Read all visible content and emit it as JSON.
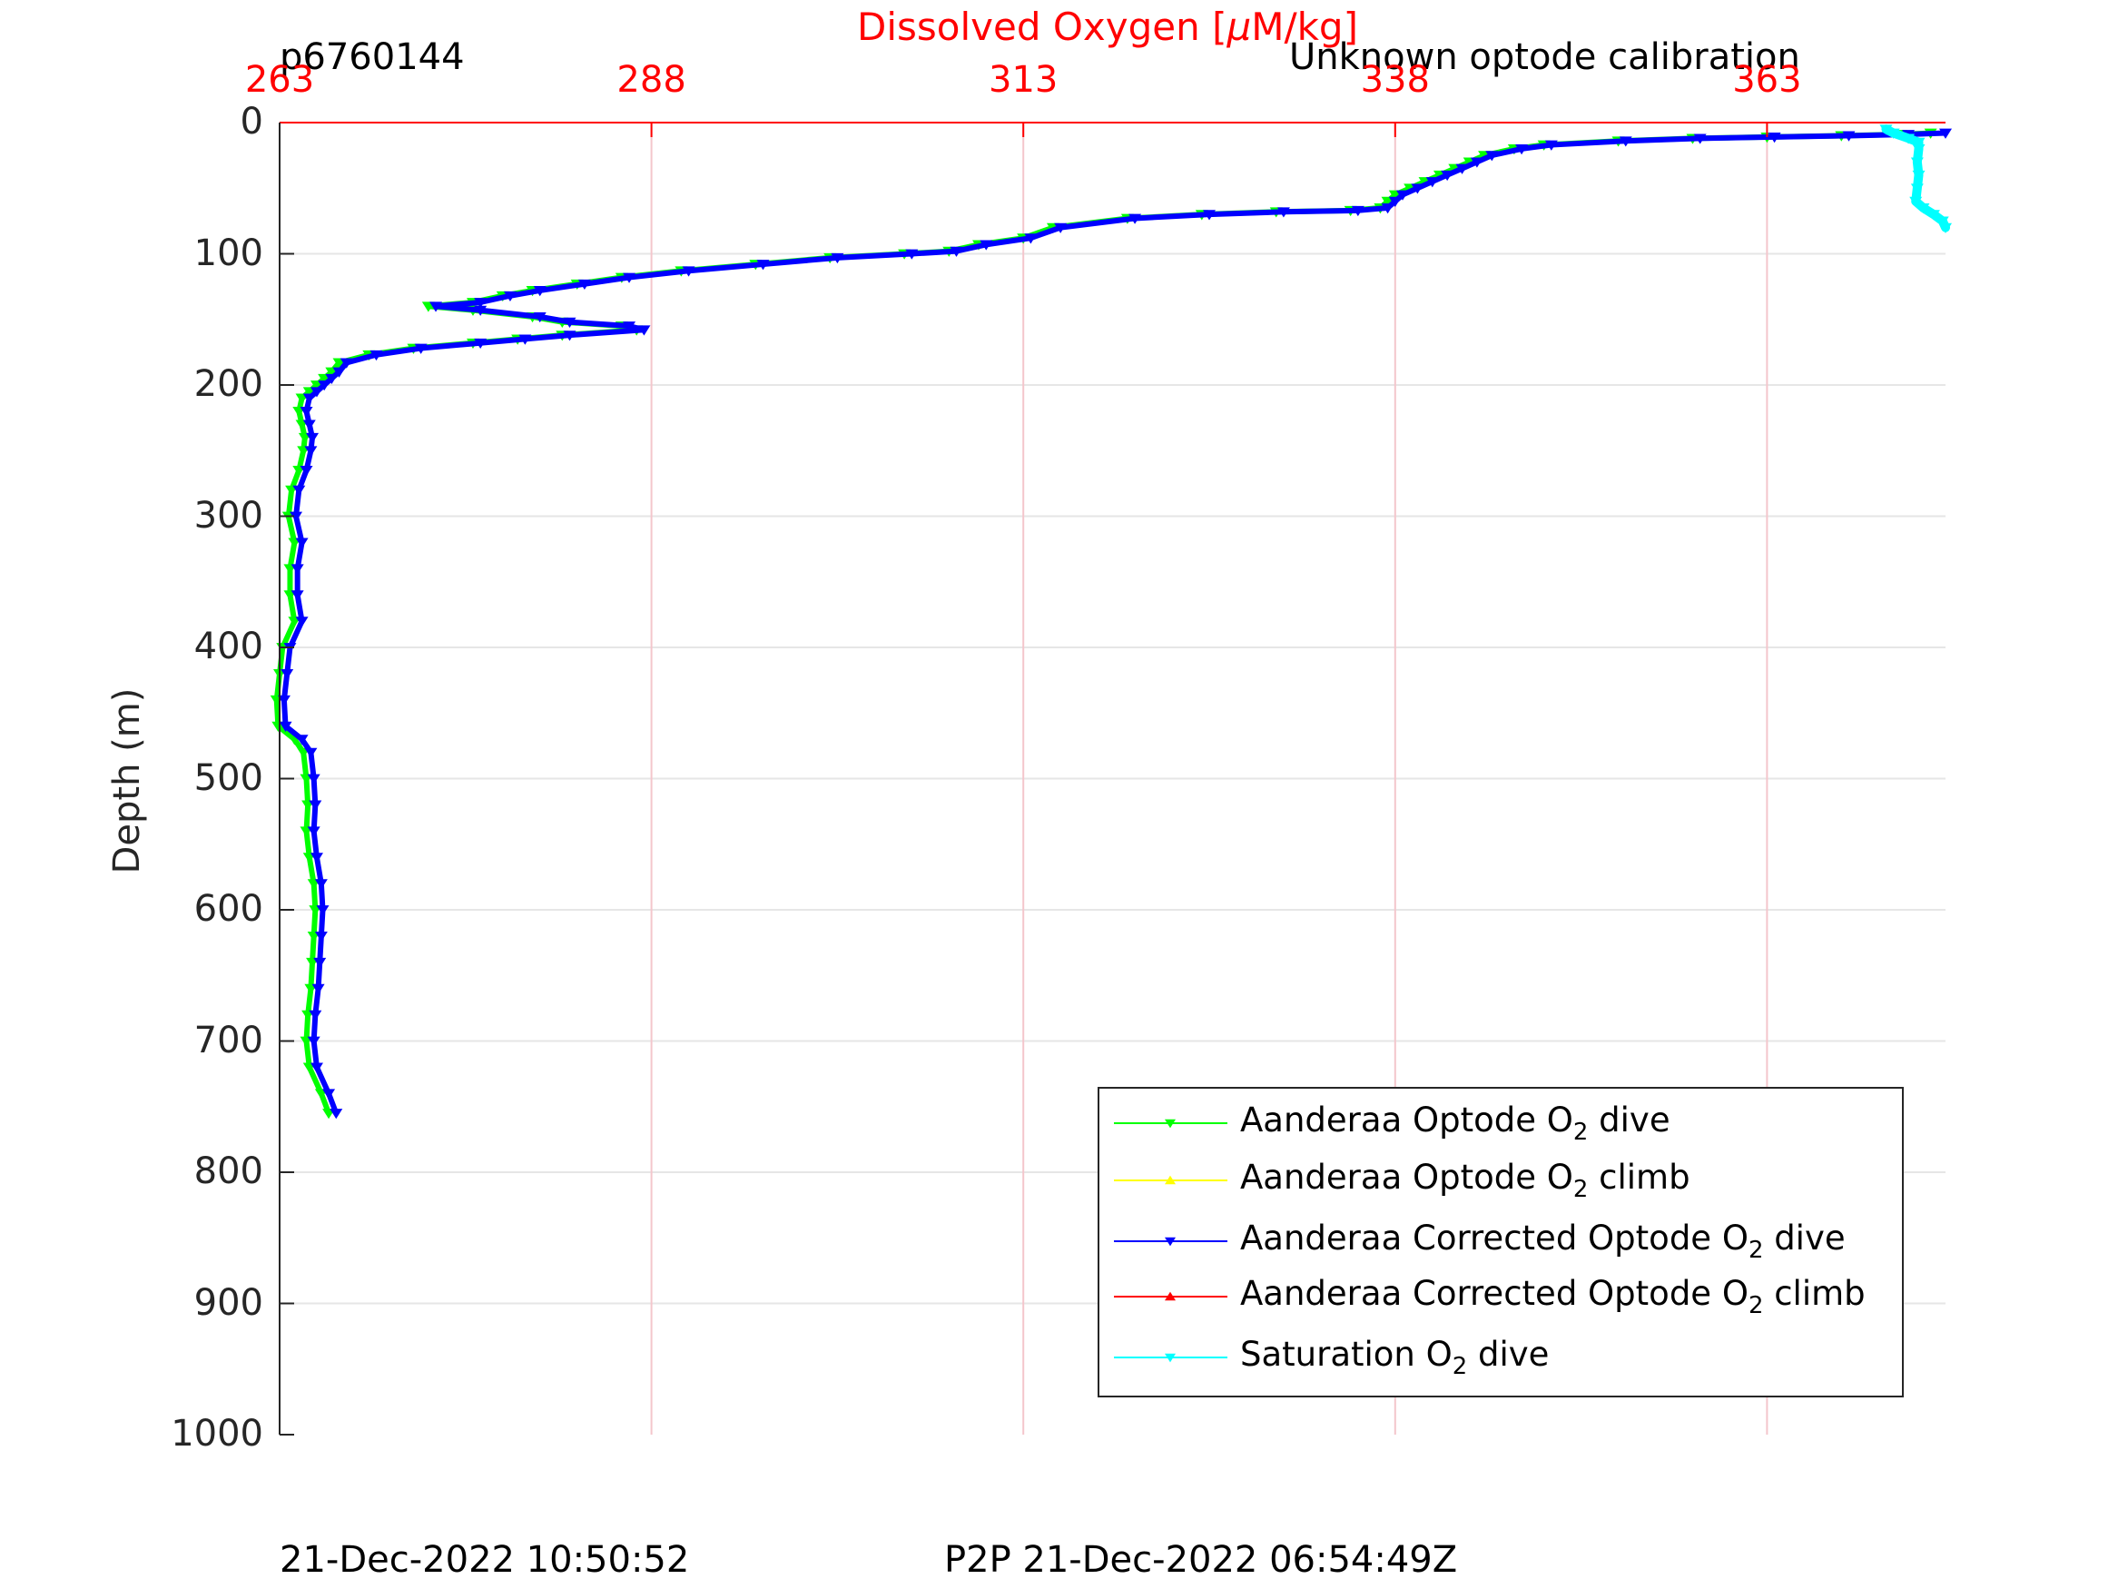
{
  "header": {
    "profile_id": "p6760144",
    "calibration_note": "Unknown optode calibration"
  },
  "footer": {
    "left_timestamp": "21-Dec-2022 10:50:52",
    "right_timestamp": "P2P 21-Dec-2022 06:54:49Z"
  },
  "colors": {
    "optode_dive": "#00ff00",
    "optode_climb": "#ffff00",
    "corrected_dive": "#0000ff",
    "corrected_climb": "#ff0000",
    "saturation_dive": "#00ffff",
    "top_axis": "#ff0000",
    "grid": "#e6e6e6",
    "vgrid": "#f4c6cc"
  },
  "chart_data": {
    "type": "line",
    "title": "Dissolved Oxygen [μM/kg]",
    "title_parts": {
      "before": "Dissolved Oxygen [",
      "mu": "μ",
      "after": "M/kg]"
    },
    "xlabel": "Dissolved Oxygen [μM/kg]",
    "ylabel": "Depth (m)",
    "xlim": [
      263,
      375
    ],
    "ylim": [
      0,
      1000
    ],
    "y_reversed": true,
    "x_axis_position": "top",
    "x_ticks": [
      "263",
      "288",
      "313",
      "338",
      "363"
    ],
    "y_ticks": [
      "0",
      "100",
      "200",
      "300",
      "400",
      "500",
      "600",
      "700",
      "800",
      "900",
      "1000"
    ],
    "grid": true,
    "legend_position": "bottom-right",
    "legend": [
      {
        "label": "Aanderaa Optode O",
        "sub": "2",
        "suffix": " dive",
        "marker": "down",
        "color": "#00ff00"
      },
      {
        "label": "Aanderaa Optode O",
        "sub": "2",
        "suffix": " climb",
        "marker": "up",
        "color": "#ffff00"
      },
      {
        "label": "Aanderaa Corrected Optode O",
        "sub": "2",
        "suffix": " dive",
        "marker": "down",
        "color": "#0000ff"
      },
      {
        "label": "Aanderaa Corrected Optode O",
        "sub": "2",
        "suffix": " climb",
        "marker": "up",
        "color": "#ff0000"
      },
      {
        "label": "Saturation O",
        "sub": "2",
        "suffix": " dive",
        "marker": "down",
        "color": "#00ffff"
      }
    ],
    "series": [
      {
        "name": "Aanderaa Optode O2 dive",
        "color": "#00ff00",
        "points": [
          [
            374,
            8
          ],
          [
            372,
            9
          ],
          [
            368,
            10
          ],
          [
            363,
            11
          ],
          [
            358,
            12
          ],
          [
            353,
            14
          ],
          [
            348,
            17
          ],
          [
            346,
            20
          ],
          [
            344,
            25
          ],
          [
            343,
            30
          ],
          [
            342,
            35
          ],
          [
            341,
            40
          ],
          [
            340,
            45
          ],
          [
            339,
            50
          ],
          [
            338,
            55
          ],
          [
            337.5,
            60
          ],
          [
            337,
            65
          ],
          [
            335,
            67
          ],
          [
            330,
            68
          ],
          [
            325,
            70
          ],
          [
            320,
            73
          ],
          [
            315,
            80
          ],
          [
            313,
            88
          ],
          [
            310,
            93
          ],
          [
            308,
            98
          ],
          [
            305,
            100
          ],
          [
            300,
            103
          ],
          [
            295,
            108
          ],
          [
            290,
            113
          ],
          [
            286,
            118
          ],
          [
            283,
            123
          ],
          [
            280,
            128
          ],
          [
            278,
            132
          ],
          [
            276,
            137
          ],
          [
            273,
            140
          ],
          [
            276,
            143
          ],
          [
            280,
            148
          ],
          [
            282,
            152
          ],
          [
            286,
            155
          ],
          [
            287,
            158
          ],
          [
            282,
            162
          ],
          [
            279,
            165
          ],
          [
            276,
            168
          ],
          [
            272,
            172
          ],
          [
            269,
            177
          ],
          [
            267,
            183
          ],
          [
            266.5,
            190
          ],
          [
            266,
            195
          ],
          [
            265.5,
            200
          ],
          [
            265,
            205
          ],
          [
            264.5,
            210
          ],
          [
            264.3,
            220
          ],
          [
            264.5,
            230
          ],
          [
            264.7,
            240
          ],
          [
            264.6,
            250
          ],
          [
            264.3,
            265
          ],
          [
            263.8,
            280
          ],
          [
            263.6,
            300
          ],
          [
            264,
            320
          ],
          [
            263.7,
            340
          ],
          [
            263.7,
            360
          ],
          [
            264,
            380
          ],
          [
            263.2,
            400
          ],
          [
            263,
            420
          ],
          [
            262.8,
            440
          ],
          [
            262.9,
            460
          ],
          [
            264,
            470
          ],
          [
            264.6,
            480
          ],
          [
            264.8,
            500
          ],
          [
            264.9,
            520
          ],
          [
            264.8,
            540
          ],
          [
            265,
            560
          ],
          [
            265.3,
            580
          ],
          [
            265.4,
            600
          ],
          [
            265.3,
            620
          ],
          [
            265.2,
            640
          ],
          [
            265.1,
            660
          ],
          [
            264.9,
            680
          ],
          [
            264.8,
            700
          ],
          [
            265,
            720
          ],
          [
            265.8,
            740
          ],
          [
            266.3,
            755
          ]
        ]
      },
      {
        "name": "Aanderaa Corrected Optode O2 dive",
        "color": "#0000ff",
        "points": [
          [
            375,
            8
          ],
          [
            372.5,
            9
          ],
          [
            368.5,
            10
          ],
          [
            363.5,
            11
          ],
          [
            358.5,
            12
          ],
          [
            353.5,
            14
          ],
          [
            348.5,
            17
          ],
          [
            346.5,
            20
          ],
          [
            344.5,
            25
          ],
          [
            343.5,
            30
          ],
          [
            342.5,
            35
          ],
          [
            341.5,
            40
          ],
          [
            340.5,
            45
          ],
          [
            339.5,
            50
          ],
          [
            338.5,
            55
          ],
          [
            338,
            60
          ],
          [
            337.5,
            65
          ],
          [
            335.5,
            67
          ],
          [
            330.5,
            68
          ],
          [
            325.5,
            70
          ],
          [
            320.5,
            73
          ],
          [
            315.5,
            80
          ],
          [
            313.5,
            88
          ],
          [
            310.5,
            93
          ],
          [
            308.5,
            98
          ],
          [
            305.5,
            100
          ],
          [
            300.5,
            103
          ],
          [
            295.5,
            108
          ],
          [
            290.5,
            113
          ],
          [
            286.5,
            118
          ],
          [
            283.5,
            123
          ],
          [
            280.5,
            128
          ],
          [
            278.5,
            132
          ],
          [
            276.5,
            137
          ],
          [
            273.5,
            140
          ],
          [
            276.5,
            143
          ],
          [
            280.5,
            148
          ],
          [
            282.5,
            152
          ],
          [
            286.5,
            155
          ],
          [
            287.5,
            158
          ],
          [
            282.5,
            162
          ],
          [
            279.5,
            165
          ],
          [
            276.5,
            168
          ],
          [
            272.5,
            172
          ],
          [
            269.5,
            177
          ],
          [
            267.5,
            183
          ],
          [
            267,
            190
          ],
          [
            266.5,
            195
          ],
          [
            266,
            200
          ],
          [
            265.5,
            205
          ],
          [
            265,
            210
          ],
          [
            264.8,
            220
          ],
          [
            265,
            230
          ],
          [
            265.2,
            240
          ],
          [
            265.1,
            250
          ],
          [
            264.8,
            265
          ],
          [
            264.3,
            280
          ],
          [
            264.1,
            300
          ],
          [
            264.5,
            320
          ],
          [
            264.2,
            340
          ],
          [
            264.2,
            360
          ],
          [
            264.5,
            380
          ],
          [
            263.7,
            400
          ],
          [
            263.5,
            420
          ],
          [
            263.3,
            440
          ],
          [
            263.4,
            460
          ],
          [
            264.5,
            470
          ],
          [
            265.1,
            480
          ],
          [
            265.3,
            500
          ],
          [
            265.4,
            520
          ],
          [
            265.3,
            540
          ],
          [
            265.5,
            560
          ],
          [
            265.8,
            580
          ],
          [
            265.9,
            600
          ],
          [
            265.8,
            620
          ],
          [
            265.7,
            640
          ],
          [
            265.6,
            660
          ],
          [
            265.4,
            680
          ],
          [
            265.3,
            700
          ],
          [
            265.5,
            720
          ],
          [
            266.3,
            740
          ],
          [
            266.8,
            755
          ]
        ]
      },
      {
        "name": "Saturation O2 dive",
        "color": "#00ffff",
        "points": [
          [
            371,
            5
          ],
          [
            371.5,
            8
          ],
          [
            372.5,
            12
          ],
          [
            373.2,
            15
          ],
          [
            373.2,
            20
          ],
          [
            373.1,
            30
          ],
          [
            373.2,
            40
          ],
          [
            373.1,
            50
          ],
          [
            373,
            60
          ],
          [
            373.5,
            65
          ],
          [
            374.2,
            70
          ],
          [
            374.8,
            75
          ],
          [
            375,
            80
          ]
        ]
      }
    ]
  }
}
